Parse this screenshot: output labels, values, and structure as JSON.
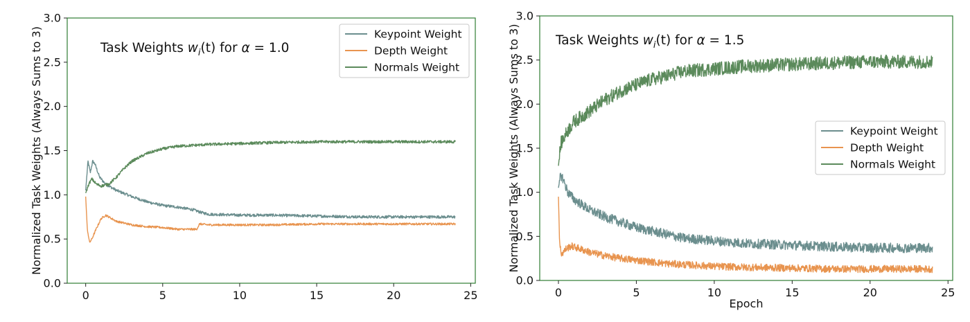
{
  "chart_data": [
    {
      "type": "line",
      "title": "Task Weights w_i(t) for α = 1.0",
      "title_parts": {
        "prefix": "Task Weights ",
        "w": "w",
        "sub": "i",
        "t": "(t)",
        "mid": " for ",
        "alpha": "α",
        "eq": " = 1.0"
      },
      "xlabel": "",
      "ylabel": "Normalized Task Weights (Always Sums to 3)",
      "xlim": [
        -1.2,
        25.3
      ],
      "ylim": [
        0,
        3.0
      ],
      "xticks": [
        0,
        5,
        10,
        15,
        20,
        25
      ],
      "yticks": [
        0.0,
        0.5,
        1.0,
        1.5,
        2.0,
        2.5,
        3.0
      ],
      "xtick_labels": [
        "0",
        "5",
        "10",
        "15",
        "20",
        "25"
      ],
      "ytick_labels": [
        "0.0",
        "0.5",
        "1.0",
        "1.5",
        "2.0",
        "2.5",
        "3.0"
      ],
      "grid": false,
      "legend_position": "top-right",
      "noise_level": "low",
      "series": [
        {
          "name": "Keypoint Weight",
          "color": "#6b8e8e",
          "points": [
            [
              0,
              1.05
            ],
            [
              0.15,
              1.38
            ],
            [
              0.3,
              1.25
            ],
            [
              0.45,
              1.38
            ],
            [
              0.6,
              1.35
            ],
            [
              0.9,
              1.2
            ],
            [
              1.3,
              1.12
            ],
            [
              2,
              1.05
            ],
            [
              3,
              0.98
            ],
            [
              4,
              0.92
            ],
            [
              5,
              0.88
            ],
            [
              6,
              0.86
            ],
            [
              7,
              0.83
            ],
            [
              7.5,
              0.8
            ],
            [
              8,
              0.78
            ],
            [
              10,
              0.77
            ],
            [
              12,
              0.77
            ],
            [
              15,
              0.76
            ],
            [
              18,
              0.75
            ],
            [
              20,
              0.75
            ],
            [
              24,
              0.75
            ]
          ]
        },
        {
          "name": "Depth Weight",
          "color": "#e8944f",
          "points": [
            [
              0,
              0.98
            ],
            [
              0.1,
              0.62
            ],
            [
              0.25,
              0.46
            ],
            [
              0.4,
              0.5
            ],
            [
              0.7,
              0.62
            ],
            [
              1.0,
              0.73
            ],
            [
              1.3,
              0.77
            ],
            [
              1.6,
              0.74
            ],
            [
              2,
              0.7
            ],
            [
              3,
              0.66
            ],
            [
              4,
              0.64
            ],
            [
              5,
              0.63
            ],
            [
              6,
              0.61
            ],
            [
              7.2,
              0.61
            ],
            [
              7.4,
              0.67
            ],
            [
              8,
              0.66
            ],
            [
              10,
              0.66
            ],
            [
              12,
              0.66
            ],
            [
              15,
              0.67
            ],
            [
              18,
              0.67
            ],
            [
              20,
              0.67
            ],
            [
              24,
              0.67
            ]
          ]
        },
        {
          "name": "Normals Weight",
          "color": "#5b8a5b",
          "points": [
            [
              0,
              1.02
            ],
            [
              0.2,
              1.12
            ],
            [
              0.4,
              1.18
            ],
            [
              0.7,
              1.12
            ],
            [
              1.0,
              1.1
            ],
            [
              1.5,
              1.12
            ],
            [
              2,
              1.2
            ],
            [
              2.5,
              1.3
            ],
            [
              3,
              1.38
            ],
            [
              4,
              1.47
            ],
            [
              5,
              1.52
            ],
            [
              6,
              1.55
            ],
            [
              7,
              1.56
            ],
            [
              8,
              1.57
            ],
            [
              10,
              1.58
            ],
            [
              12,
              1.59
            ],
            [
              15,
              1.6
            ],
            [
              18,
              1.6
            ],
            [
              20,
              1.6
            ],
            [
              24,
              1.6
            ]
          ]
        }
      ]
    },
    {
      "type": "line",
      "title": "Task Weights w_i(t) for α = 1.5",
      "title_parts": {
        "prefix": "Task Weights ",
        "w": "w",
        "sub": "i",
        "t": "(t)",
        "mid": " for ",
        "alpha": "α",
        "eq": " = 1.5"
      },
      "xlabel": "Epoch",
      "ylabel": "Normalized Task Weights (Always Sums to 3)",
      "xlim": [
        -1.2,
        25.3
      ],
      "ylim": [
        0,
        3.0
      ],
      "xticks": [
        0,
        5,
        10,
        15,
        20,
        25
      ],
      "yticks": [
        0.0,
        0.5,
        1.0,
        1.5,
        2.0,
        2.5,
        3.0
      ],
      "xtick_labels": [
        "0",
        "5",
        "10",
        "15",
        "20",
        "25"
      ],
      "ytick_labels": [
        "0.0",
        "0.5",
        "1.0",
        "1.5",
        "2.0",
        "2.5",
        "3.0"
      ],
      "grid": false,
      "legend_position": "center-right",
      "noise_level": "high",
      "series": [
        {
          "name": "Keypoint Weight",
          "color": "#6b8e8e",
          "points": [
            [
              0,
              1.05
            ],
            [
              0.15,
              1.2
            ],
            [
              0.3,
              1.15
            ],
            [
              0.6,
              1.0
            ],
            [
              1,
              0.92
            ],
            [
              2,
              0.8
            ],
            [
              3,
              0.72
            ],
            [
              4,
              0.66
            ],
            [
              5,
              0.6
            ],
            [
              6,
              0.56
            ],
            [
              7,
              0.52
            ],
            [
              8,
              0.48
            ],
            [
              10,
              0.45
            ],
            [
              12,
              0.42
            ],
            [
              15,
              0.4
            ],
            [
              18,
              0.38
            ],
            [
              20,
              0.37
            ],
            [
              24,
              0.37
            ]
          ]
        },
        {
          "name": "Depth Weight",
          "color": "#e8944f",
          "points": [
            [
              0,
              0.95
            ],
            [
              0.08,
              0.4
            ],
            [
              0.2,
              0.3
            ],
            [
              0.5,
              0.36
            ],
            [
              0.8,
              0.39
            ],
            [
              1.2,
              0.37
            ],
            [
              2,
              0.32
            ],
            [
              3,
              0.28
            ],
            [
              4,
              0.25
            ],
            [
              5,
              0.23
            ],
            [
              6,
              0.21
            ],
            [
              7,
              0.19
            ],
            [
              8,
              0.18
            ],
            [
              10,
              0.16
            ],
            [
              12,
              0.15
            ],
            [
              15,
              0.14
            ],
            [
              18,
              0.13
            ],
            [
              20,
              0.13
            ],
            [
              24,
              0.13
            ]
          ]
        },
        {
          "name": "Normals Weight",
          "color": "#5b8a5b",
          "points": [
            [
              0,
              1.3
            ],
            [
              0.15,
              1.55
            ],
            [
              0.3,
              1.6
            ],
            [
              0.6,
              1.7
            ],
            [
              1,
              1.8
            ],
            [
              2,
              1.92
            ],
            [
              3,
              2.05
            ],
            [
              4,
              2.15
            ],
            [
              5,
              2.22
            ],
            [
              6,
              2.28
            ],
            [
              7,
              2.32
            ],
            [
              8,
              2.37
            ],
            [
              10,
              2.4
            ],
            [
              12,
              2.43
            ],
            [
              15,
              2.45
            ],
            [
              18,
              2.47
            ],
            [
              20,
              2.48
            ],
            [
              24,
              2.48
            ]
          ]
        }
      ]
    }
  ]
}
